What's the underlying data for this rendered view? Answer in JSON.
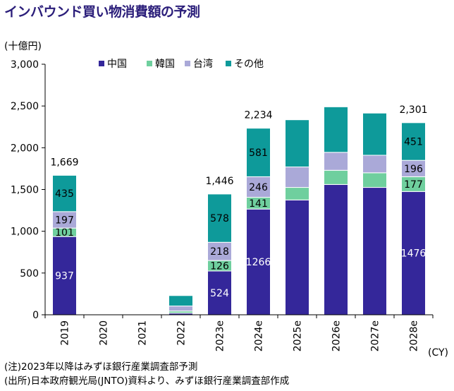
{
  "page_title": "インバウンド買い物消費額の予測",
  "notes": [
    "(注)2023年以降はみずほ銀行産業調査部予測",
    "(出所)日本政府観光局(JNTO)資料より、みずほ銀行産業調査部作成"
  ],
  "chart_data": {
    "type": "bar",
    "stacked": true,
    "title": "インバウンド買い物消費額の予測",
    "ylabel": "(十億円)",
    "xlabel": "(CY)",
    "ylim": [
      0,
      3000
    ],
    "yticks": [
      0,
      500,
      1000,
      1500,
      2000,
      2500,
      3000
    ],
    "ytick_labels": [
      "0",
      "500",
      "1,000",
      "1,500",
      "2,000",
      "2,500",
      "3,000"
    ],
    "legend_position": "top",
    "categories": [
      "2019",
      "2020",
      "2021",
      "2022",
      "2023e",
      "2024e",
      "2025e",
      "2026e",
      "2027e",
      "2028e"
    ],
    "series": [
      {
        "name": "中国",
        "color": "#34279a",
        "label_color": "#ffffff",
        "values": [
          937,
          0,
          0,
          20,
          524,
          1266,
          1375,
          1560,
          1525,
          1476
        ],
        "labels": [
          "937",
          null,
          null,
          null,
          "524",
          "1266",
          null,
          null,
          null,
          "1476"
        ]
      },
      {
        "name": "韓国",
        "color": "#6fcf9e",
        "label_color": "#000000",
        "values": [
          101,
          0,
          0,
          25,
          126,
          141,
          150,
          170,
          175,
          177
        ],
        "labels": [
          "101",
          null,
          null,
          null,
          "126",
          "141",
          null,
          null,
          null,
          "177"
        ]
      },
      {
        "name": "台湾",
        "color": "#aaa9d8",
        "label_color": "#000000",
        "values": [
          197,
          0,
          0,
          60,
          218,
          246,
          245,
          215,
          210,
          196
        ],
        "labels": [
          "197",
          null,
          null,
          null,
          "218",
          "246",
          null,
          null,
          null,
          "196"
        ]
      },
      {
        "name": "その他",
        "color": "#0e9a9a",
        "label_color": "#000000",
        "values": [
          435,
          0,
          0,
          125,
          578,
          581,
          565,
          545,
          505,
          451
        ],
        "labels": [
          "435",
          null,
          null,
          null,
          "578",
          "581",
          null,
          null,
          null,
          "451"
        ]
      }
    ],
    "totals": [
      "1,669",
      null,
      null,
      null,
      "1,446",
      "2,234",
      null,
      null,
      null,
      "2,301"
    ]
  }
}
